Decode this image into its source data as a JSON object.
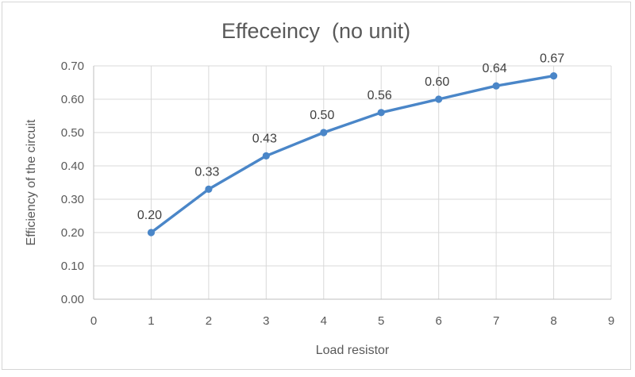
{
  "chart": {
    "title": "Effeceincy  (no unit)",
    "x_axis_title": "Load resistor",
    "y_axis_title": "Efficiency of the circuit",
    "colors": {
      "series_line": "#4a86c8",
      "marker": "#4a86c8",
      "gridline": "#d9d9d9",
      "axis_line": "#bfbfbf",
      "title_text": "#595959",
      "tick_text": "#595959",
      "data_label_text": "#404040",
      "frame_border": "#d6d6d6",
      "background": "#ffffff"
    }
  },
  "chart_data": {
    "type": "line",
    "title": "Effeceincy  (no unit)",
    "xlabel": "Load resistor",
    "ylabel": "Efficiency of the circuit",
    "x": [
      1,
      2,
      3,
      4,
      5,
      6,
      7,
      8
    ],
    "values": [
      0.2,
      0.33,
      0.43,
      0.5,
      0.56,
      0.6,
      0.64,
      0.67
    ],
    "point_labels": [
      "0.20",
      "0.33",
      "0.43",
      "0.50",
      "0.56",
      "0.60",
      "0.64",
      "0.67"
    ],
    "series": [
      {
        "name": "Efficiency",
        "values": [
          0.2,
          0.33,
          0.43,
          0.5,
          0.56,
          0.6,
          0.64,
          0.67
        ]
      }
    ],
    "xlim": [
      0,
      9
    ],
    "ylim": [
      0.0,
      0.7
    ],
    "x_ticks": [
      "0",
      "1",
      "2",
      "3",
      "4",
      "5",
      "6",
      "7",
      "8",
      "9"
    ],
    "y_ticks": [
      "0.00",
      "0.10",
      "0.20",
      "0.30",
      "0.40",
      "0.50",
      "0.60",
      "0.70"
    ],
    "grid": "both",
    "legend": "none",
    "marker": "circle"
  }
}
